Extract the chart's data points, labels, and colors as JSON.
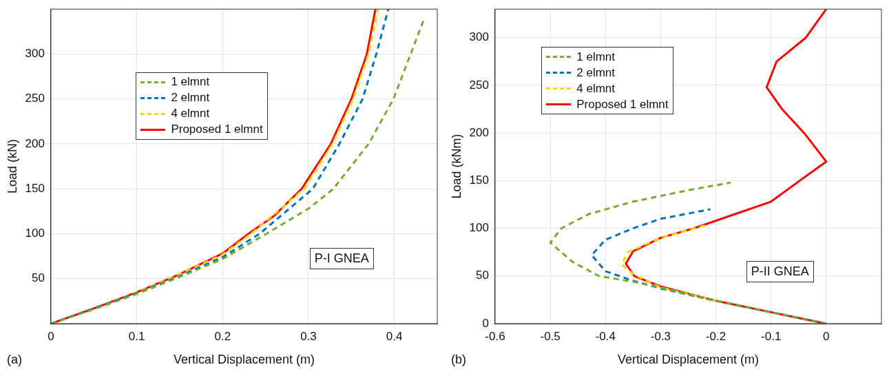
{
  "chart_data": [
    {
      "type": "line",
      "xlabel": "Vertical Displacement (m)",
      "ylabel": "Load (kN)",
      "xlim": [
        0,
        0.45
      ],
      "ylim": [
        0,
        350
      ],
      "xticks": [
        0,
        0.1,
        0.2,
        0.3,
        0.4
      ],
      "yticks": [
        50,
        100,
        150,
        200,
        250,
        300
      ],
      "grid": true,
      "legend": "top left",
      "annotations": [
        "(a)",
        "P-I GNEA"
      ],
      "series": [
        {
          "name": "1 elmnt",
          "color": "#77ac30",
          "line_style": "dashed",
          "x": [
            0,
            0.05,
            0.1,
            0.15,
            0.2,
            0.251,
            0.3,
            0.329,
            0.37,
            0.399,
            0.419,
            0.435
          ],
          "values": [
            0,
            16,
            33,
            52,
            72,
            100,
            128,
            150,
            200,
            250,
            300,
            340
          ]
        },
        {
          "name": "2 elmnt",
          "color": "#0072bd",
          "line_style": "dashed",
          "x": [
            0,
            0.05,
            0.1,
            0.15,
            0.2,
            0.243,
            0.305,
            0.336,
            0.363,
            0.379,
            0.393
          ],
          "values": [
            0,
            17,
            34,
            53,
            74,
            100,
            150,
            200,
            250,
            300,
            350
          ]
        },
        {
          "name": "4 elmnt",
          "color": "#ffd700",
          "line_style": "dashed",
          "x": [
            0,
            0.05,
            0.1,
            0.15,
            0.2,
            0.233,
            0.295,
            0.328,
            0.352,
            0.37,
            0.381
          ],
          "values": [
            0,
            17,
            35,
            55,
            77,
            100,
            150,
            200,
            250,
            300,
            350
          ]
        },
        {
          "name": "Proposed  1 elmnt",
          "color": "#ff0000",
          "line_style": "solid",
          "x": [
            0,
            0.05,
            0.1,
            0.15,
            0.2,
            0.23,
            0.26,
            0.292,
            0.326,
            0.35,
            0.368,
            0.378
          ],
          "values": [
            0,
            17,
            35,
            55,
            78,
            100,
            120,
            150,
            200,
            250,
            300,
            350
          ]
        }
      ]
    },
    {
      "type": "line",
      "xlabel": "Vertical Displacement (m)",
      "ylabel": "Load (kNm)",
      "xlim": [
        -0.6,
        0.1
      ],
      "ylim": [
        0,
        330
      ],
      "xticks": [
        -0.6,
        -0.5,
        -0.4,
        -0.3,
        -0.2,
        -0.1,
        0
      ],
      "yticks": [
        0,
        50,
        100,
        150,
        200,
        250,
        300
      ],
      "grid": true,
      "legend": "top left",
      "annotations": [
        "(b)",
        "P-II GNEA"
      ],
      "series": [
        {
          "name": "1 elmnt",
          "color": "#77ac30",
          "line_style": "dashed",
          "x": [
            0,
            -0.1,
            -0.2,
            -0.3,
            -0.35,
            -0.412,
            -0.46,
            -0.5,
            -0.48,
            -0.43,
            -0.35,
            -0.25,
            -0.173
          ],
          "values": [
            0,
            12,
            24,
            38,
            44,
            50,
            65,
            85,
            100,
            115,
            128,
            140,
            148
          ]
        },
        {
          "name": "2 elmnt",
          "color": "#0072bd",
          "line_style": "dashed",
          "x": [
            0,
            -0.1,
            -0.2,
            -0.3,
            -0.35,
            -0.4,
            -0.425,
            -0.4,
            -0.35,
            -0.3,
            -0.21
          ],
          "values": [
            0,
            12,
            24,
            37,
            45,
            55,
            72,
            88,
            100,
            110,
            120
          ]
        },
        {
          "name": "4 elmnt",
          "color": "#ffd700",
          "line_style": "dashed",
          "x": [
            -0.2,
            -0.3,
            -0.35,
            -0.371,
            -0.36,
            -0.3,
            -0.22
          ],
          "values": [
            24,
            38,
            52,
            62,
            75,
            90,
            103
          ]
        },
        {
          "name": "Proposed  1 elmnt",
          "color": "#ff0000",
          "line_style": "solid",
          "x": [
            0,
            -0.1,
            -0.2,
            -0.3,
            -0.348,
            -0.363,
            -0.35,
            -0.3,
            -0.24,
            -0.2,
            -0.1,
            -0.048,
            0,
            -0.04,
            -0.08,
            -0.108,
            -0.09,
            -0.037,
            0
          ],
          "values": [
            0,
            12,
            24,
            39,
            50,
            63,
            76,
            90,
            100,
            108,
            128,
            150,
            170,
            200,
            225,
            248,
            275,
            300,
            330
          ]
        }
      ]
    }
  ]
}
